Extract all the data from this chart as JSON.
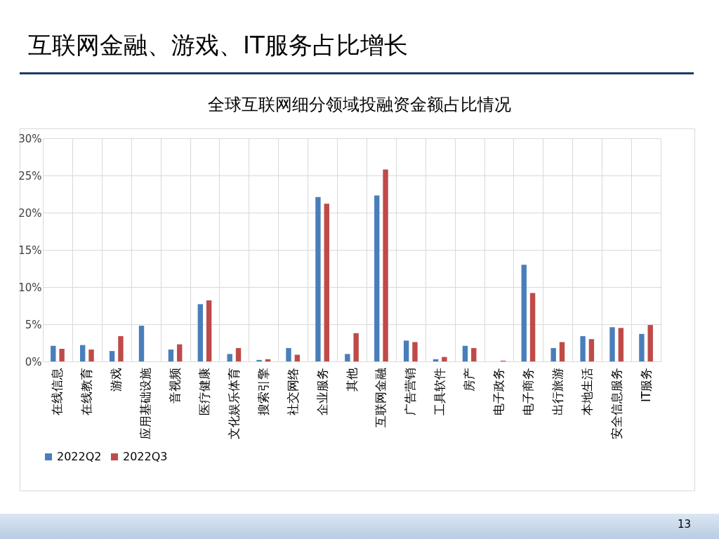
{
  "chart_data": {
    "type": "bar",
    "title": "互联网金融、游戏、IT服务占比增长",
    "subtitle": "全球互联网细分领域投融资金额占比情况",
    "categories": [
      "在线信息",
      "在线教育",
      "游戏",
      "应用基础设施",
      "音视频",
      "医疗健康",
      "文化娱乐体育",
      "搜索引擎",
      "社交网络",
      "企业服务",
      "其他",
      "互联网金融",
      "广告营销",
      "工具软件",
      "房产",
      "电子政务",
      "电子商务",
      "出行旅游",
      "本地生活",
      "安全信息服务",
      "IT服务"
    ],
    "series": [
      {
        "name": "2022Q2",
        "color": "#4a7ebb",
        "values": [
          2.1,
          2.2,
          1.4,
          4.8,
          1.6,
          7.7,
          1.0,
          0.2,
          1.8,
          22.1,
          1.0,
          22.3,
          2.8,
          0.3,
          2.1,
          0,
          13.0,
          1.8,
          3.4,
          4.6,
          3.7
        ]
      },
      {
        "name": "2022Q3",
        "color": "#be4b48",
        "values": [
          1.7,
          1.6,
          3.4,
          0,
          2.3,
          8.2,
          1.8,
          0.3,
          0.9,
          21.2,
          3.8,
          25.8,
          2.6,
          0.6,
          1.8,
          0.1,
          9.2,
          2.6,
          3.0,
          4.5,
          4.9
        ]
      }
    ],
    "ylim": [
      0,
      30
    ],
    "yticks": [
      {
        "value": 0,
        "label": "0%"
      },
      {
        "value": 5,
        "label": "5%"
      },
      {
        "value": 10,
        "label": "10%"
      },
      {
        "value": 15,
        "label": "15%"
      },
      {
        "value": 20,
        "label": "20%"
      },
      {
        "value": 25,
        "label": "25%"
      },
      {
        "value": 30,
        "label": "30%"
      }
    ],
    "grid": true,
    "legend": "bottom",
    "annotations": [
      "13"
    ]
  }
}
